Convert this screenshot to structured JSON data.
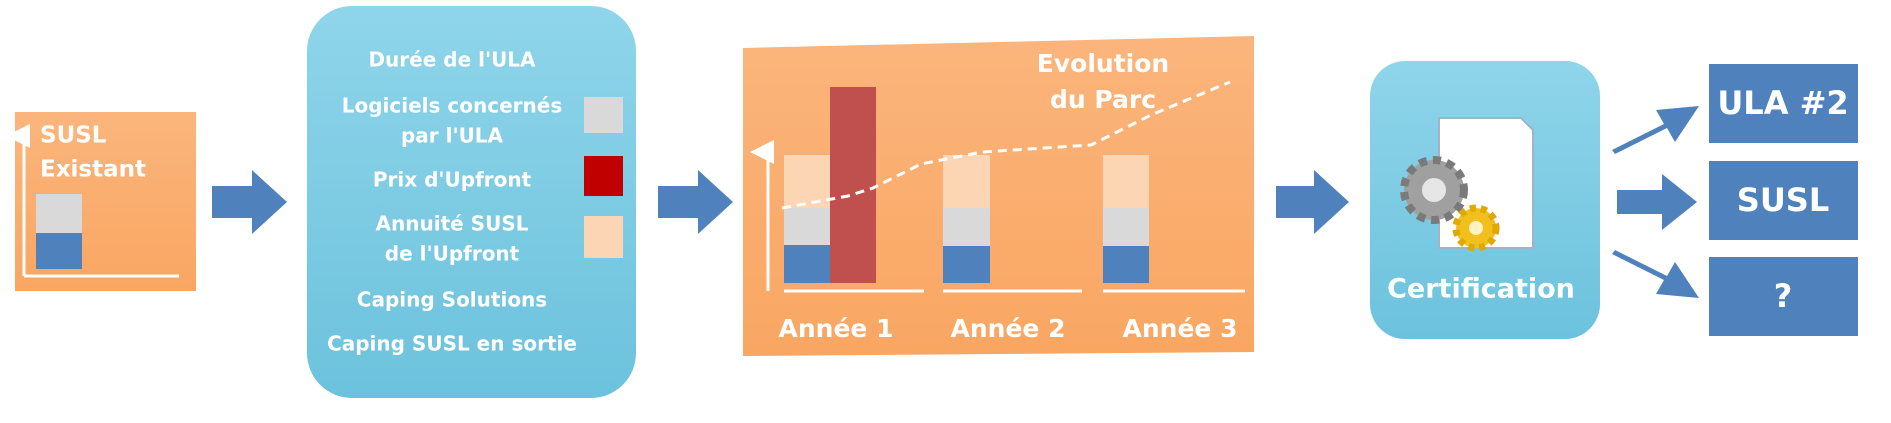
{
  "existing": {
    "title": [
      "SUSL",
      "Existant"
    ]
  },
  "parameters": {
    "items": [
      {
        "label": [
          "Durée de l'ULA"
        ]
      },
      {
        "label": [
          "Logiciels concernés",
          "par l'ULA"
        ]
      },
      {
        "label": [
          "Prix d'Upfront"
        ]
      },
      {
        "label": [
          "Annuité SUSL",
          "de l'Upfront"
        ]
      },
      {
        "label": [
          "Caping Solutions"
        ]
      },
      {
        "label": [
          "Caping SUSL en sortie"
        ]
      }
    ]
  },
  "simulation": {
    "title": [
      "Evolution",
      "du Parc"
    ],
    "years": [
      "Année 1",
      "Année 2",
      "Année 3"
    ]
  },
  "certification": {
    "label": "Certification"
  },
  "outputs": [
    "ULA #2",
    "SUSL",
    "?"
  ]
}
